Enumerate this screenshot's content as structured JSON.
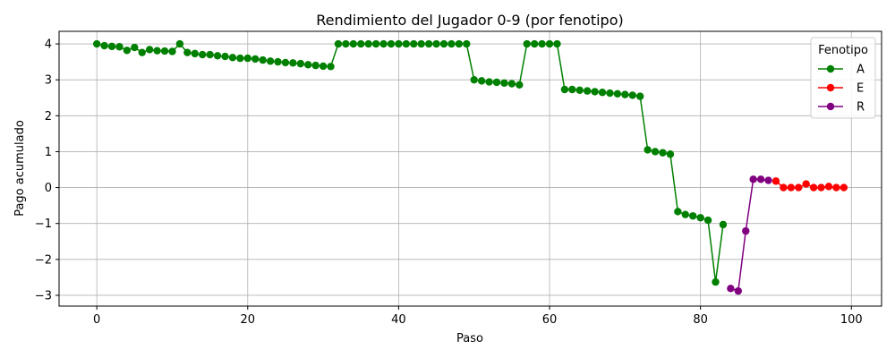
{
  "chart_data": {
    "type": "line",
    "title": "Rendimiento del Jugador 0-9 (por fenotipo)",
    "xlabel": "Paso",
    "ylabel": "Pago acumulado",
    "xlim": [
      -5,
      104
    ],
    "ylim": [
      -3.3,
      4.35
    ],
    "xticks": [
      0,
      20,
      40,
      60,
      80,
      100
    ],
    "yticks": [
      -3,
      -2,
      -1,
      0,
      1,
      2,
      3,
      4
    ],
    "grid": true,
    "legend": {
      "title": "Fenotipo",
      "placement": "top-right"
    },
    "series": [
      {
        "name": "A",
        "color": "#008000",
        "x": [
          0,
          1,
          2,
          3,
          4,
          5,
          6,
          7,
          8,
          9,
          10,
          11,
          12,
          13,
          14,
          15,
          16,
          17,
          18,
          19,
          20,
          21,
          22,
          23,
          24,
          25,
          26,
          27,
          28,
          29,
          30,
          31,
          32,
          33,
          34,
          35,
          36,
          37,
          38,
          39,
          40,
          41,
          42,
          43,
          44,
          45,
          46,
          47,
          48,
          49,
          50,
          51,
          52,
          53,
          54,
          55,
          56,
          57,
          58,
          59,
          60,
          61,
          62,
          63,
          64,
          65,
          66,
          67,
          68,
          69,
          70,
          71,
          72,
          73,
          74,
          75,
          76,
          77,
          78,
          79,
          80,
          81,
          82,
          83
        ],
        "y": [
          4.0,
          3.95,
          3.93,
          3.92,
          3.82,
          3.9,
          3.76,
          3.84,
          3.81,
          3.8,
          3.79,
          4.0,
          3.76,
          3.73,
          3.7,
          3.7,
          3.67,
          3.65,
          3.62,
          3.6,
          3.6,
          3.58,
          3.55,
          3.52,
          3.5,
          3.48,
          3.47,
          3.45,
          3.42,
          3.4,
          3.38,
          3.37,
          4.0,
          4.0,
          4.0,
          4.0,
          4.0,
          4.0,
          4.0,
          4.0,
          4.0,
          4.0,
          4.0,
          4.0,
          4.0,
          4.0,
          4.0,
          4.0,
          4.0,
          4.0,
          3.0,
          2.97,
          2.94,
          2.93,
          2.91,
          2.89,
          2.86,
          4.0,
          4.0,
          4.0,
          4.0,
          4.0,
          2.73,
          2.73,
          2.71,
          2.69,
          2.67,
          2.65,
          2.63,
          2.61,
          2.59,
          2.57,
          2.54,
          1.05,
          1.0,
          0.97,
          0.93,
          -0.67,
          -0.75,
          -0.79,
          -0.84,
          -0.91,
          -2.63,
          -1.03
        ]
      },
      {
        "name": "E",
        "color": "#ff0000",
        "x": [
          90,
          91,
          92,
          93,
          94,
          95,
          96,
          97,
          98,
          99
        ],
        "y": [
          0.18,
          0.0,
          0.0,
          0.0,
          0.1,
          0.0,
          0.0,
          0.03,
          0.0,
          0.0
        ]
      },
      {
        "name": "R",
        "color": "#800080",
        "x": [
          84,
          85,
          86,
          87,
          88,
          89
        ],
        "y": [
          -2.81,
          -2.88,
          -1.21,
          0.23,
          0.23,
          0.2
        ]
      }
    ]
  }
}
